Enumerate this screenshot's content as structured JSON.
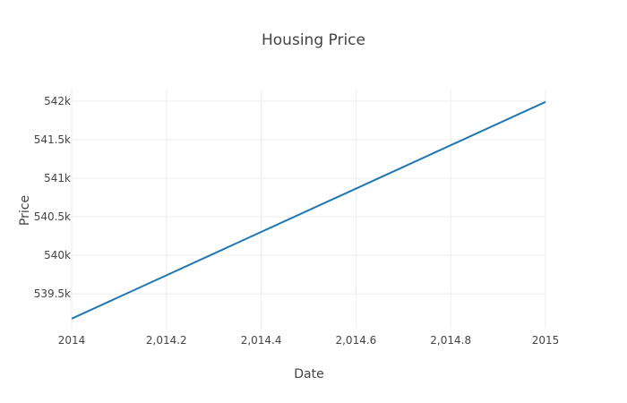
{
  "chart_data": {
    "type": "line",
    "title": "Housing Price",
    "xlabel": "Date",
    "ylabel": "Price",
    "x_ticks": [
      2014,
      2014.2,
      2014.4,
      2014.6,
      2014.8,
      2015
    ],
    "x_tick_labels": [
      "2014",
      "2,014.2",
      "2,014.4",
      "2,014.6",
      "2,014.8",
      "2015"
    ],
    "y_ticks": [
      539500,
      540000,
      540500,
      541000,
      541500,
      542000
    ],
    "y_tick_labels": [
      "539.5k",
      "540k",
      "540.5k",
      "541k",
      "541.5k",
      "542k"
    ],
    "xlim": [
      2014,
      2015
    ],
    "ylim": [
      539050,
      542150
    ],
    "grid": true,
    "series": [
      {
        "color": "#1f77b4",
        "x": [
          2014,
          2015
        ],
        "y": [
          539180,
          541990
        ]
      }
    ]
  }
}
